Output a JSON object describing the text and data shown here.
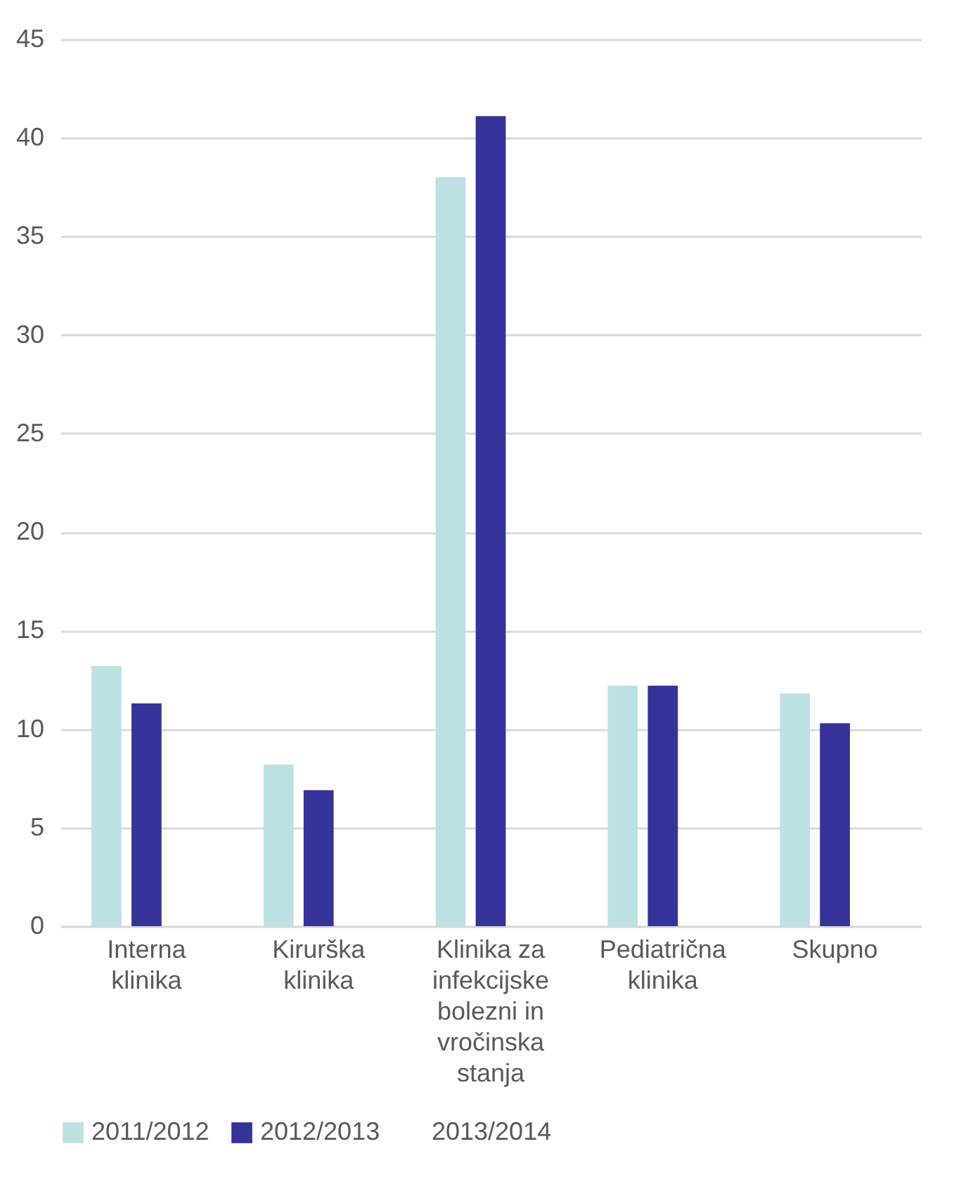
{
  "chart_data": {
    "type": "bar",
    "categories": [
      "Interna klinika",
      "Kirurška klinika",
      "Klinika za infekcijske bolezni in vročinska stanja",
      "Pediatrična klinika",
      "Skupno"
    ],
    "series": [
      {
        "name": "2011/2012",
        "color": "#bde0e3",
        "values": [
          13.2,
          8.2,
          38.0,
          12.2,
          11.8
        ]
      },
      {
        "name": "2012/2013",
        "color": "#343399",
        "values": [
          11.3,
          6.9,
          41.1,
          12.2,
          10.3
        ]
      },
      {
        "name": "2013/2014",
        "values": [
          null,
          null,
          null,
          null,
          null
        ]
      }
    ],
    "ylim": [
      0,
      45
    ],
    "yticks": [
      0,
      5,
      10,
      15,
      20,
      25,
      30,
      35,
      40,
      45
    ],
    "grid": "y",
    "legend": "bottom"
  }
}
